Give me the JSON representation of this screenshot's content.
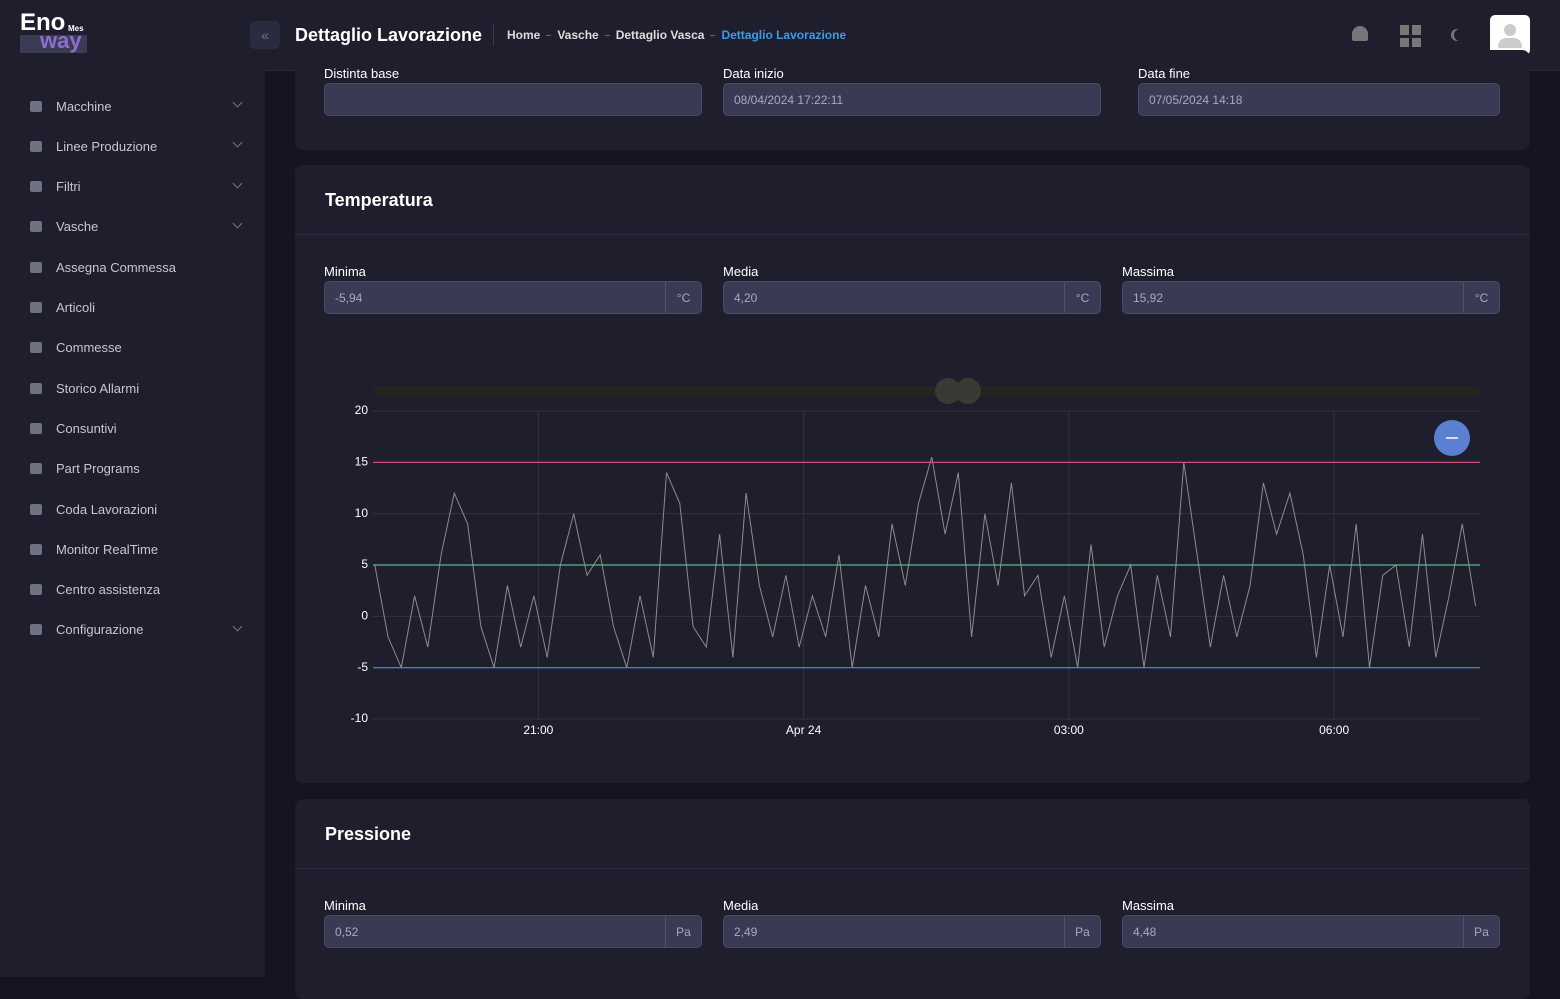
{
  "header": {
    "logo": {
      "main": "Eno",
      "small": "Mes",
      "sub": "way"
    },
    "title": "Dettaglio Lavorazione",
    "breadcrumb": [
      "Home",
      "Vasche",
      "Dettaglio Vasca",
      "Dettaglio Lavorazione"
    ]
  },
  "sidebar": {
    "items": [
      {
        "label": "Macchine",
        "has_submenu": true
      },
      {
        "label": "Linee Produzione",
        "has_submenu": true
      },
      {
        "label": "Filtri",
        "has_submenu": true
      },
      {
        "label": "Vasche",
        "has_submenu": true
      },
      {
        "label": "Assegna Commessa",
        "has_submenu": false
      },
      {
        "label": "Articoli",
        "has_submenu": false
      },
      {
        "label": "Commesse",
        "has_submenu": false
      },
      {
        "label": "Storico Allarmi",
        "has_submenu": false
      },
      {
        "label": "Consuntivi",
        "has_submenu": false
      },
      {
        "label": "Part Programs",
        "has_submenu": false
      },
      {
        "label": "Coda Lavorazioni",
        "has_submenu": false
      },
      {
        "label": "Monitor RealTime",
        "has_submenu": false
      },
      {
        "label": "Centro assistenza",
        "has_submenu": false
      },
      {
        "label": "Configurazione",
        "has_submenu": true
      }
    ]
  },
  "info": {
    "fields": [
      {
        "label": "Distinta base"
      },
      {
        "label": "Data inizio",
        "value": "08/04/2024 17:22:11"
      },
      {
        "label": "Data fine",
        "value": "07/05/2024 14:18"
      }
    ]
  },
  "temperature": {
    "title": "Temperatura",
    "stats": [
      {
        "label": "Minima",
        "value": "-5,94",
        "unit": "°C"
      },
      {
        "label": "Media",
        "value": "4,20",
        "unit": "°C"
      },
      {
        "label": "Massima",
        "value": "15,92",
        "unit": "°C"
      }
    ]
  },
  "pressure": {
    "title": "Pressione",
    "stats": [
      {
        "label": "Minima",
        "value": "0,52",
        "unit": "Pa"
      },
      {
        "label": "Media",
        "value": "2,49",
        "unit": "Pa"
      },
      {
        "label": "Massima",
        "value": "4,48",
        "unit": "Pa"
      }
    ]
  },
  "chart_data": {
    "type": "line",
    "x": [
      19.15,
      19.3,
      19.45,
      19.6,
      19.75,
      19.9,
      20.05,
      20.2,
      20.35,
      20.5,
      20.65,
      20.8,
      20.95,
      21.1,
      21.25,
      21.4,
      21.55,
      21.7,
      21.85,
      22.0,
      22.15,
      22.3,
      22.45,
      22.6,
      22.75,
      22.9,
      23.05,
      23.2,
      23.35,
      23.5,
      23.65,
      23.8,
      23.95,
      24.1,
      24.25,
      24.4,
      24.55,
      24.7,
      24.85,
      25.0,
      25.15,
      25.3,
      25.45,
      25.6,
      25.75,
      25.9,
      26.05,
      26.2,
      26.35,
      26.5,
      26.65,
      26.8,
      26.95,
      27.1,
      27.25,
      27.4,
      27.55,
      27.7,
      27.85,
      28.0,
      28.15,
      28.3,
      28.45,
      28.6,
      28.75,
      28.9,
      29.05,
      29.2,
      29.35,
      29.5,
      29.65,
      29.8,
      29.95,
      30.1,
      30.25,
      30.4,
      30.55,
      30.7,
      30.85,
      31.0,
      31.15,
      31.3,
      31.45,
      31.6
    ],
    "series": [
      {
        "color": "#8c8c8c",
        "values": [
          5,
          -2,
          -5,
          2,
          -3,
          6,
          12,
          9,
          -1,
          -5,
          3,
          -3,
          2,
          -4,
          5,
          10,
          4,
          6,
          -1,
          -5,
          2,
          -4,
          14,
          11,
          -1,
          -3,
          8,
          -4,
          12,
          3,
          -2,
          4,
          -3,
          2,
          -2,
          6,
          -5,
          3,
          -2,
          9,
          3,
          11,
          15.5,
          8,
          14,
          -2,
          10,
          3,
          13,
          2,
          4,
          -4,
          2,
          -5,
          7,
          -3,
          2,
          5,
          -5,
          4,
          -2,
          15,
          6,
          -3,
          4,
          -2,
          3,
          13,
          8,
          12,
          6,
          -4,
          5,
          -2,
          9,
          -5,
          4,
          5,
          -3,
          8,
          -4,
          2,
          9,
          1
        ]
      }
    ],
    "reference_lines": [
      {
        "value": 15,
        "color": "#e0507a"
      },
      {
        "value": 5,
        "color": "#4fbf8a"
      },
      {
        "value": -5,
        "color": "#3a9ad9"
      }
    ],
    "xlim": [
      19.13,
      31.65
    ],
    "xticks": [
      {
        "value": 21,
        "label": "21:00"
      },
      {
        "value": 24,
        "label": "Apr 24"
      },
      {
        "value": 27,
        "label": "03:00"
      },
      {
        "value": 30,
        "label": "06:00"
      }
    ],
    "ylim": [
      -10,
      20
    ],
    "yticks": [
      20,
      15,
      10,
      5,
      0,
      -5,
      -10
    ],
    "grid": true
  }
}
